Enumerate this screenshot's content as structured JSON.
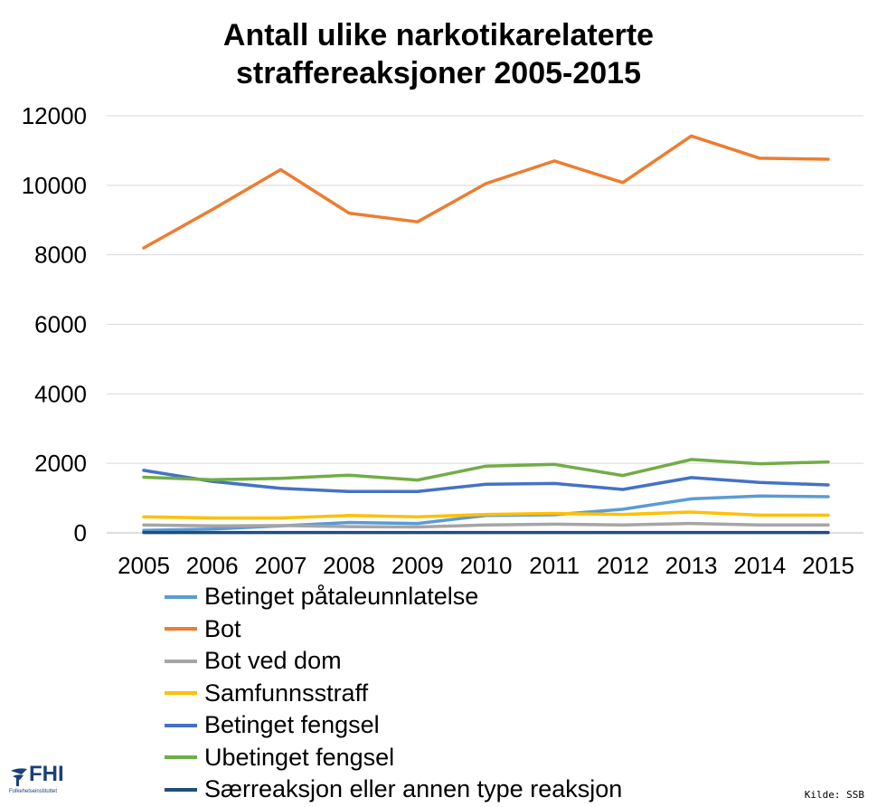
{
  "chart_data": {
    "type": "line",
    "title_lines": [
      "Antall ulike narkotikarelaterte",
      "straffereaksjoner 2005-2015"
    ],
    "x": [
      "2005",
      "2006",
      "2007",
      "2008",
      "2009",
      "2010",
      "2011",
      "2012",
      "2013",
      "2014",
      "2015"
    ],
    "ylim": [
      0,
      12000
    ],
    "yticks": [
      0,
      2000,
      4000,
      6000,
      8000,
      10000,
      12000
    ],
    "grid": true,
    "legend_position": "bottom",
    "series": [
      {
        "name": "Betinget påtaleunnlatelse",
        "color": "#5B9BD5",
        "values": [
          70,
          110,
          200,
          300,
          270,
          500,
          520,
          680,
          980,
          1060,
          1040
        ]
      },
      {
        "name": "Bot",
        "color": "#ED7D31",
        "values": [
          8200,
          9300,
          10450,
          9200,
          8950,
          10050,
          10700,
          10080,
          11420,
          10780,
          10750
        ]
      },
      {
        "name": "Bot ved dom",
        "color": "#A5A5A5",
        "values": [
          230,
          200,
          210,
          180,
          170,
          230,
          250,
          230,
          270,
          230,
          230
        ]
      },
      {
        "name": "Samfunnsstraff",
        "color": "#FFC000",
        "values": [
          460,
          430,
          430,
          500,
          460,
          530,
          560,
          530,
          600,
          510,
          510
        ]
      },
      {
        "name": "Betinget fengsel",
        "color": "#4472C4",
        "values": [
          1800,
          1480,
          1280,
          1190,
          1190,
          1400,
          1420,
          1250,
          1590,
          1450,
          1380
        ]
      },
      {
        "name": "Ubetinget fengsel",
        "color": "#70AD47",
        "values": [
          1600,
          1530,
          1570,
          1660,
          1520,
          1920,
          1970,
          1650,
          2110,
          1990,
          2040
        ]
      },
      {
        "name": "Særreaksjon eller annen type reaksjon",
        "color": "#1F4E79",
        "values": [
          10,
          10,
          10,
          10,
          10,
          10,
          10,
          10,
          10,
          10,
          10
        ]
      }
    ]
  },
  "logo": {
    "text": "FHI",
    "subtitle": "Folkehelseinstituttet"
  },
  "source": "Kilde: SSB"
}
